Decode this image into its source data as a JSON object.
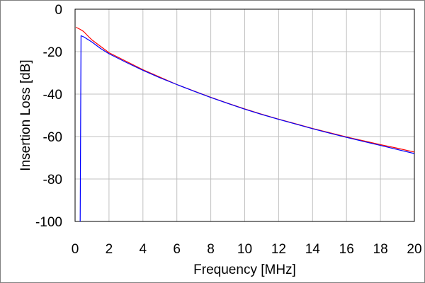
{
  "chart_data": {
    "type": "line",
    "title": "",
    "xlabel": "Frequency [MHz]",
    "ylabel": "Insertion Loss [dB]",
    "xlim": [
      0,
      20
    ],
    "ylim": [
      -100,
      0
    ],
    "xticks": [
      0,
      2,
      4,
      6,
      8,
      10,
      12,
      14,
      16,
      18,
      20
    ],
    "yticks": [
      0,
      -20,
      -40,
      -60,
      -80,
      -100
    ],
    "grid": true,
    "legend": "none",
    "series": [
      {
        "color": "#ff0000",
        "x": [
          0.05,
          0.3,
          0.5,
          0.8,
          1.0,
          1.5,
          2.0,
          2.5,
          3.0,
          4.0,
          5.0,
          6.0,
          7.0,
          8.0,
          9.0,
          10.0,
          11.0,
          12.0,
          13.0,
          14.0,
          15.0,
          16.0,
          17.0,
          18.0,
          19.0,
          20.0
        ],
        "y": [
          -8.5,
          -9.5,
          -10.5,
          -13.0,
          -14.5,
          -17.5,
          -20.5,
          -22.5,
          -24.5,
          -28.5,
          -32.0,
          -35.5,
          -38.5,
          -41.5,
          -44.3,
          -47.0,
          -49.5,
          -51.8,
          -54.0,
          -56.2,
          -58.2,
          -60.2,
          -62.0,
          -63.8,
          -65.5,
          -67.3
        ]
      },
      {
        "color": "#0000ff",
        "x": [
          0.3,
          0.35,
          0.5,
          0.8,
          1.0,
          1.5,
          2.0,
          2.5,
          3.0,
          4.0,
          5.0,
          6.0,
          7.0,
          8.0,
          9.0,
          10.0,
          11.0,
          12.0,
          13.0,
          14.0,
          15.0,
          16.0,
          17.0,
          18.0,
          19.0,
          20.0
        ],
        "y": [
          -100,
          -12.5,
          -13.0,
          -14.5,
          -15.5,
          -18.5,
          -21.0,
          -23.0,
          -25.0,
          -28.8,
          -32.3,
          -35.5,
          -38.6,
          -41.6,
          -44.4,
          -47.1,
          -49.6,
          -51.9,
          -54.1,
          -56.3,
          -58.4,
          -60.4,
          -62.3,
          -64.2,
          -66.1,
          -68.0
        ]
      }
    ]
  }
}
